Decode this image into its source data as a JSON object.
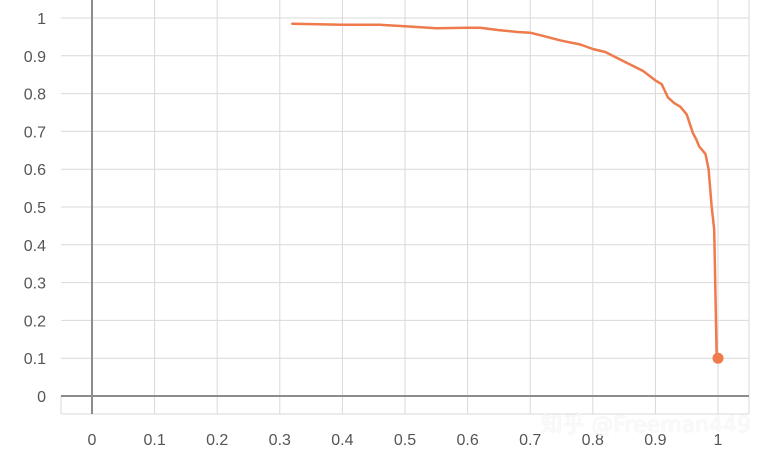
{
  "chart_data": {
    "type": "line",
    "title": "",
    "xlabel": "",
    "ylabel": "",
    "xlim": [
      -0.05,
      1.05
    ],
    "ylim": [
      -0.05,
      1.02
    ],
    "xticks": [
      "0",
      "0.1",
      "0.2",
      "0.3",
      "0.4",
      "0.5",
      "0.6",
      "0.7",
      "0.8",
      "0.9",
      "1"
    ],
    "yticks": [
      "0",
      "0.1",
      "0.2",
      "0.3",
      "0.4",
      "0.5",
      "0.6",
      "0.7",
      "0.8",
      "0.9",
      "1"
    ],
    "grid": true,
    "legend": "none",
    "series": [
      {
        "color": "#ef7a4c",
        "x": [
          0.32,
          0.4,
          0.46,
          0.5,
          0.55,
          0.6,
          0.62,
          0.65,
          0.68,
          0.7,
          0.72,
          0.75,
          0.78,
          0.8,
          0.82,
          0.85,
          0.88,
          0.9,
          0.91,
          0.92,
          0.93,
          0.94,
          0.95,
          0.955,
          0.96,
          0.965,
          0.97,
          0.975,
          0.98,
          0.985,
          0.99,
          0.994,
          0.998,
          1.0
        ],
        "y": [
          0.985,
          0.982,
          0.982,
          0.978,
          0.973,
          0.974,
          0.974,
          0.968,
          0.963,
          0.961,
          0.953,
          0.94,
          0.93,
          0.918,
          0.91,
          0.885,
          0.86,
          0.835,
          0.825,
          0.79,
          0.775,
          0.765,
          0.745,
          0.72,
          0.695,
          0.68,
          0.66,
          0.65,
          0.64,
          0.6,
          0.5,
          0.44,
          0.1,
          0.1
        ]
      }
    ],
    "end_marker": {
      "x": 1.0,
      "y": 0.1
    }
  },
  "watermark": "知乎 @Freeman449"
}
